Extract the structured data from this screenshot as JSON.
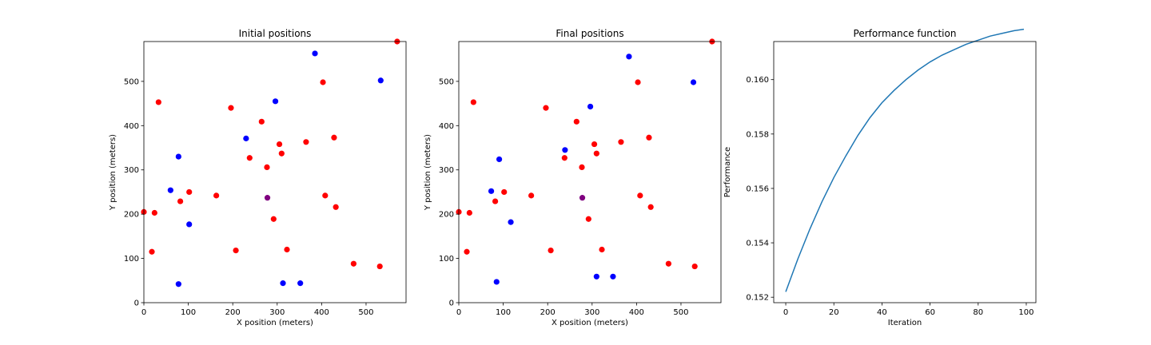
{
  "chart_data": [
    {
      "type": "scatter",
      "title": "Initial positions",
      "xlabel": "X position (meters)",
      "ylabel": "Y position (meters)",
      "xlim": [
        0,
        590
      ],
      "ylim": [
        0,
        590
      ],
      "xticks": [
        0,
        100,
        200,
        300,
        400,
        500
      ],
      "yticks": [
        0,
        100,
        200,
        300,
        400,
        500
      ],
      "grid": false,
      "colors": {
        "red": "#ff0000",
        "blue": "#0000ff",
        "purple": "#800080"
      },
      "points": [
        {
          "x": 570,
          "y": 590,
          "color": "red"
        },
        {
          "x": 385,
          "y": 563,
          "color": "blue"
        },
        {
          "x": 533,
          "y": 502,
          "color": "blue"
        },
        {
          "x": 403,
          "y": 498,
          "color": "red"
        },
        {
          "x": 33,
          "y": 453,
          "color": "red"
        },
        {
          "x": 296,
          "y": 455,
          "color": "blue"
        },
        {
          "x": 196,
          "y": 440,
          "color": "red"
        },
        {
          "x": 265,
          "y": 409,
          "color": "red"
        },
        {
          "x": 230,
          "y": 371,
          "color": "blue"
        },
        {
          "x": 428,
          "y": 373,
          "color": "red"
        },
        {
          "x": 365,
          "y": 363,
          "color": "red"
        },
        {
          "x": 305,
          "y": 358,
          "color": "red"
        },
        {
          "x": 310,
          "y": 337,
          "color": "red"
        },
        {
          "x": 78,
          "y": 330,
          "color": "blue"
        },
        {
          "x": 238,
          "y": 327,
          "color": "red"
        },
        {
          "x": 277,
          "y": 306,
          "color": "red"
        },
        {
          "x": 60,
          "y": 254,
          "color": "blue"
        },
        {
          "x": 102,
          "y": 250,
          "color": "red"
        },
        {
          "x": 163,
          "y": 242,
          "color": "red"
        },
        {
          "x": 408,
          "y": 242,
          "color": "red"
        },
        {
          "x": 278,
          "y": 237,
          "color": "purple"
        },
        {
          "x": 82,
          "y": 229,
          "color": "red"
        },
        {
          "x": 432,
          "y": 216,
          "color": "red"
        },
        {
          "x": 0,
          "y": 205,
          "color": "red"
        },
        {
          "x": 24,
          "y": 203,
          "color": "red"
        },
        {
          "x": 292,
          "y": 189,
          "color": "red"
        },
        {
          "x": 102,
          "y": 177,
          "color": "blue"
        },
        {
          "x": 322,
          "y": 120,
          "color": "red"
        },
        {
          "x": 207,
          "y": 118,
          "color": "red"
        },
        {
          "x": 18,
          "y": 115,
          "color": "red"
        },
        {
          "x": 472,
          "y": 88,
          "color": "red"
        },
        {
          "x": 531,
          "y": 82,
          "color": "red"
        },
        {
          "x": 313,
          "y": 44,
          "color": "blue"
        },
        {
          "x": 352,
          "y": 44,
          "color": "blue"
        },
        {
          "x": 78,
          "y": 42,
          "color": "blue"
        }
      ]
    },
    {
      "type": "scatter",
      "title": "Final positions",
      "xlabel": "X position (meters)",
      "ylabel": "Y position (meters)",
      "xlim": [
        0,
        590
      ],
      "ylim": [
        0,
        590
      ],
      "xticks": [
        0,
        100,
        200,
        300,
        400,
        500
      ],
      "yticks": [
        0,
        100,
        200,
        300,
        400,
        500
      ],
      "grid": false,
      "colors": {
        "red": "#ff0000",
        "blue": "#0000ff",
        "purple": "#800080"
      },
      "points": [
        {
          "x": 570,
          "y": 590,
          "color": "red"
        },
        {
          "x": 383,
          "y": 556,
          "color": "blue"
        },
        {
          "x": 528,
          "y": 498,
          "color": "blue"
        },
        {
          "x": 403,
          "y": 498,
          "color": "red"
        },
        {
          "x": 33,
          "y": 453,
          "color": "red"
        },
        {
          "x": 296,
          "y": 443,
          "color": "blue"
        },
        {
          "x": 196,
          "y": 440,
          "color": "red"
        },
        {
          "x": 265,
          "y": 409,
          "color": "red"
        },
        {
          "x": 428,
          "y": 373,
          "color": "red"
        },
        {
          "x": 365,
          "y": 363,
          "color": "red"
        },
        {
          "x": 305,
          "y": 358,
          "color": "red"
        },
        {
          "x": 239,
          "y": 345,
          "color": "blue"
        },
        {
          "x": 310,
          "y": 337,
          "color": "red"
        },
        {
          "x": 238,
          "y": 327,
          "color": "red"
        },
        {
          "x": 91,
          "y": 324,
          "color": "blue"
        },
        {
          "x": 277,
          "y": 306,
          "color": "red"
        },
        {
          "x": 73,
          "y": 252,
          "color": "blue"
        },
        {
          "x": 102,
          "y": 250,
          "color": "red"
        },
        {
          "x": 163,
          "y": 242,
          "color": "red"
        },
        {
          "x": 408,
          "y": 242,
          "color": "red"
        },
        {
          "x": 278,
          "y": 237,
          "color": "purple"
        },
        {
          "x": 82,
          "y": 229,
          "color": "red"
        },
        {
          "x": 432,
          "y": 216,
          "color": "red"
        },
        {
          "x": 0,
          "y": 205,
          "color": "red"
        },
        {
          "x": 24,
          "y": 203,
          "color": "red"
        },
        {
          "x": 292,
          "y": 189,
          "color": "red"
        },
        {
          "x": 117,
          "y": 182,
          "color": "blue"
        },
        {
          "x": 322,
          "y": 120,
          "color": "red"
        },
        {
          "x": 207,
          "y": 118,
          "color": "red"
        },
        {
          "x": 18,
          "y": 115,
          "color": "red"
        },
        {
          "x": 472,
          "y": 88,
          "color": "red"
        },
        {
          "x": 531,
          "y": 82,
          "color": "red"
        },
        {
          "x": 310,
          "y": 59,
          "color": "blue"
        },
        {
          "x": 347,
          "y": 59,
          "color": "blue"
        },
        {
          "x": 85,
          "y": 47,
          "color": "blue"
        }
      ]
    },
    {
      "type": "line",
      "title": "Performance function",
      "xlabel": "Iteration",
      "ylabel": "Performance",
      "xlim": [
        -5,
        104
      ],
      "ylim": [
        0.1518,
        0.1614
      ],
      "xticks": [
        0,
        20,
        40,
        60,
        80,
        100
      ],
      "yticks": [
        0.152,
        0.154,
        0.156,
        0.158,
        0.16
      ],
      "ytick_format": "fixed3",
      "grid": false,
      "line_color": "#1f77b4",
      "series": [
        {
          "x": [
            0,
            5,
            10,
            15,
            20,
            25,
            30,
            35,
            40,
            45,
            50,
            55,
            60,
            65,
            70,
            75,
            80,
            85,
            90,
            95,
            99
          ],
          "y": [
            0.1522,
            0.1534,
            0.1545,
            0.1555,
            0.1564,
            0.1572,
            0.15795,
            0.1586,
            0.15915,
            0.1596,
            0.16,
            0.16035,
            0.16065,
            0.1609,
            0.1611,
            0.1613,
            0.16145,
            0.1616,
            0.1617,
            0.1618,
            0.16185
          ]
        }
      ]
    }
  ]
}
